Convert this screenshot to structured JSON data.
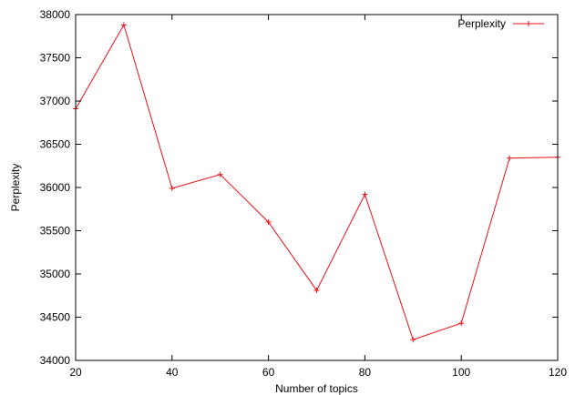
{
  "chart_data": {
    "type": "line",
    "title": "",
    "xlabel": "Number of topics",
    "ylabel": "Perplexity",
    "xlim": [
      20,
      120
    ],
    "ylim": [
      34000,
      38000
    ],
    "xticks": [
      "20",
      "40",
      "60",
      "80",
      "100",
      "120"
    ],
    "yticks": [
      "34000",
      "34500",
      "35000",
      "35500",
      "36000",
      "36500",
      "37000",
      "37500",
      "38000"
    ],
    "grid": false,
    "legend_position": "top-right",
    "colors": {
      "series": "#e8101a",
      "axis": "#000000"
    },
    "series": [
      {
        "name": "Perplexity",
        "marker": "plus",
        "x": [
          20,
          30,
          40,
          50,
          60,
          70,
          80,
          90,
          100,
          110,
          120
        ],
        "y": [
          36910,
          37880,
          35990,
          36150,
          35600,
          34810,
          35920,
          34240,
          34430,
          36340,
          36350
        ]
      }
    ]
  }
}
